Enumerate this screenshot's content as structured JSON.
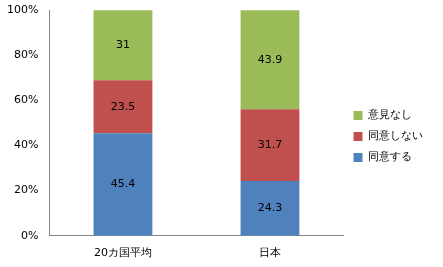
{
  "chart_data": {
    "type": "bar",
    "stacked": true,
    "categories": [
      "20カ国平均",
      "日本"
    ],
    "series": [
      {
        "name": "同意する",
        "color": "#4f81bd",
        "values": [
          45.4,
          24.3
        ]
      },
      {
        "name": "同意しない",
        "color": "#c0504d",
        "values": [
          23.5,
          31.7
        ]
      },
      {
        "name": "意見なし",
        "color": "#9bbb59",
        "values": [
          31,
          43.9
        ]
      }
    ],
    "ylim": [
      0,
      100
    ],
    "yticks": [
      {
        "value": 0,
        "label": "0%"
      },
      {
        "value": 20,
        "label": "20%"
      },
      {
        "value": 40,
        "label": "40%"
      },
      {
        "value": 60,
        "label": "60%"
      },
      {
        "value": 80,
        "label": "80%"
      },
      {
        "value": 100,
        "label": "100%"
      }
    ],
    "grid": false,
    "legend": "right",
    "data_labels": true
  }
}
